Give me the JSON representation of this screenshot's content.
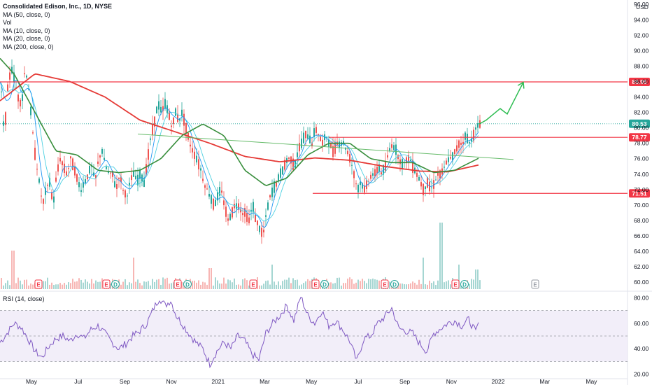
{
  "header": {
    "title": "Consolidated Edison, Inc., 1D, NYSE",
    "indicators": [
      "MA (50, close, 0)",
      "Vol",
      "MA (10, close, 0)",
      "MA (20, close, 0)",
      "MA (200, close, 0)"
    ],
    "rsi_label": "RSI (14, close)",
    "currency": "USD"
  },
  "colors": {
    "up": "#26a69a",
    "down": "#ef5350",
    "ma50": "#388e3c",
    "ma200": "#e53935",
    "ma10": "#2196f3",
    "ma20": "#4dd0e1",
    "rsi": "#7e57c2",
    "trend": "#66bb6a",
    "resistance": "#f23645",
    "last": "#26a69a"
  },
  "chart_data": {
    "type": "candlestick",
    "price_axis": {
      "ticks": [
        60,
        62,
        64,
        66,
        68,
        70,
        72,
        74,
        76,
        78,
        80,
        82,
        84,
        86,
        88,
        90,
        92,
        94,
        96
      ],
      "range": [
        59.2,
        96.2
      ]
    },
    "time_axis": [
      "May",
      "Jul",
      "Sep",
      "Nov",
      "2021",
      "Mar",
      "May",
      "Jul",
      "Sep",
      "Nov",
      "2022",
      "Mar",
      "May"
    ],
    "price_path": [
      [
        0,
        86
      ],
      [
        5,
        79
      ],
      [
        10,
        85
      ],
      [
        15,
        88
      ],
      [
        20,
        86
      ],
      [
        25,
        84
      ],
      [
        30,
        83
      ],
      [
        35,
        88
      ],
      [
        40,
        85
      ],
      [
        45,
        80
      ],
      [
        50,
        76
      ],
      [
        55,
        73
      ],
      [
        60,
        70
      ],
      [
        65,
        72
      ],
      [
        70,
        73
      ],
      [
        75,
        70
      ],
      [
        80,
        74
      ],
      [
        85,
        76
      ],
      [
        90,
        75
      ],
      [
        95,
        74
      ],
      [
        100,
        76
      ],
      [
        105,
        75
      ],
      [
        110,
        73
      ],
      [
        115,
        72
      ],
      [
        120,
        73
      ],
      [
        125,
        74
      ],
      [
        130,
        75
      ],
      [
        135,
        73
      ],
      [
        140,
        76
      ],
      [
        145,
        77
      ],
      [
        150,
        75
      ],
      [
        155,
        74
      ],
      [
        160,
        74
      ],
      [
        165,
        72
      ],
      [
        170,
        74
      ],
      [
        175,
        72
      ],
      [
        180,
        71
      ],
      [
        185,
        73
      ],
      [
        190,
        74
      ],
      [
        195,
        73
      ],
      [
        200,
        74
      ],
      [
        205,
        73
      ],
      [
        210,
        76
      ],
      [
        215,
        79
      ],
      [
        220,
        81
      ],
      [
        225,
        83
      ],
      [
        230,
        82
      ],
      [
        235,
        83
      ],
      [
        240,
        82
      ],
      [
        245,
        80
      ],
      [
        250,
        82
      ],
      [
        255,
        81
      ],
      [
        260,
        82
      ],
      [
        265,
        80
      ],
      [
        270,
        78
      ],
      [
        275,
        77
      ],
      [
        280,
        76
      ],
      [
        285,
        75
      ],
      [
        290,
        73
      ],
      [
        295,
        72
      ],
      [
        300,
        71
      ],
      [
        305,
        70
      ],
      [
        310,
        71
      ],
      [
        315,
        72
      ],
      [
        320,
        70
      ],
      [
        325,
        68
      ],
      [
        330,
        69
      ],
      [
        335,
        70
      ],
      [
        340,
        70
      ],
      [
        345,
        69
      ],
      [
        350,
        69
      ],
      [
        355,
        68
      ],
      [
        360,
        70
      ],
      [
        365,
        68
      ],
      [
        370,
        67
      ],
      [
        375,
        66
      ],
      [
        380,
        69
      ],
      [
        385,
        71
      ],
      [
        390,
        72
      ],
      [
        395,
        73
      ],
      [
        400,
        74
      ],
      [
        405,
        75
      ],
      [
        410,
        76
      ],
      [
        415,
        76
      ],
      [
        420,
        75
      ],
      [
        425,
        77
      ],
      [
        430,
        78
      ],
      [
        435,
        79
      ],
      [
        440,
        79
      ],
      [
        445,
        78
      ],
      [
        450,
        80
      ],
      [
        455,
        79
      ],
      [
        460,
        78
      ],
      [
        465,
        79
      ],
      [
        470,
        78
      ],
      [
        475,
        77
      ],
      [
        480,
        78
      ],
      [
        485,
        78
      ],
      [
        490,
        78
      ],
      [
        495,
        77
      ],
      [
        500,
        76
      ],
      [
        505,
        74
      ],
      [
        510,
        72
      ],
      [
        515,
        73
      ],
      [
        520,
        72
      ],
      [
        525,
        73
      ],
      [
        530,
        74
      ],
      [
        535,
        74
      ],
      [
        540,
        75
      ],
      [
        545,
        74
      ],
      [
        550,
        75
      ],
      [
        555,
        77
      ],
      [
        560,
        78
      ],
      [
        565,
        77
      ],
      [
        570,
        76
      ],
      [
        575,
        75
      ],
      [
        580,
        76
      ],
      [
        585,
        76
      ],
      [
        590,
        75
      ],
      [
        595,
        74
      ],
      [
        600,
        73
      ],
      [
        605,
        72
      ],
      [
        610,
        73
      ],
      [
        615,
        72
      ],
      [
        620,
        73
      ],
      [
        625,
        74
      ],
      [
        630,
        74
      ],
      [
        635,
        75
      ],
      [
        640,
        76
      ],
      [
        645,
        76
      ],
      [
        650,
        77
      ],
      [
        655,
        78
      ],
      [
        660,
        78
      ],
      [
        665,
        79
      ],
      [
        670,
        78
      ],
      [
        675,
        79
      ],
      [
        680,
        80
      ],
      [
        685,
        80.5
      ]
    ],
    "volume_spikes": [
      [
        18,
        0.55
      ],
      [
        190,
        0.45
      ],
      [
        300,
        0.3
      ],
      [
        388,
        0.35
      ],
      [
        630,
        0.95
      ],
      [
        604,
        0.45
      ],
      [
        655,
        0.35
      ],
      [
        680,
        0.28
      ]
    ],
    "ma200": [
      [
        0,
        83.5
      ],
      [
        50,
        87
      ],
      [
        100,
        86
      ],
      [
        150,
        84
      ],
      [
        200,
        81
      ],
      [
        250,
        79.5
      ],
      [
        300,
        78
      ],
      [
        350,
        76.3
      ],
      [
        400,
        75.6
      ],
      [
        450,
        76.1
      ],
      [
        500,
        75.8
      ],
      [
        550,
        75
      ],
      [
        600,
        74.4
      ],
      [
        640,
        74.3
      ],
      [
        685,
        75.2
      ]
    ],
    "ma50": [
      [
        0,
        89
      ],
      [
        20,
        87
      ],
      [
        50,
        82
      ],
      [
        80,
        77
      ],
      [
        110,
        76.5
      ],
      [
        140,
        74.5
      ],
      [
        170,
        74.2
      ],
      [
        200,
        74.5
      ],
      [
        230,
        76
      ],
      [
        260,
        79
      ],
      [
        290,
        80.5
      ],
      [
        320,
        79
      ],
      [
        350,
        74.5
      ],
      [
        380,
        72.5
      ],
      [
        410,
        73.5
      ],
      [
        440,
        76.5
      ],
      [
        470,
        78
      ],
      [
        500,
        78
      ],
      [
        530,
        76
      ],
      [
        560,
        75.5
      ],
      [
        590,
        75.5
      ],
      [
        620,
        74.2
      ],
      [
        650,
        74.5
      ],
      [
        685,
        76.1
      ]
    ],
    "trendline": {
      "from": [
        197,
        79.2
      ],
      "to": [
        734,
        75.9
      ]
    },
    "horizontal_levels": [
      {
        "price": 85.95,
        "label": "85.95",
        "x_from": 0
      },
      {
        "price": 78.77,
        "label": "78.77",
        "x_from": 470
      },
      {
        "price": 71.51,
        "label": "71.51",
        "x_from": 447
      }
    ],
    "last_price": {
      "value": 80.53,
      "label": "80.53"
    },
    "projection": [
      [
        685,
        80.5
      ],
      [
        695,
        81
      ],
      [
        715,
        82.5
      ],
      [
        725,
        81.8
      ],
      [
        748,
        85.9
      ]
    ],
    "earnings_markers": [
      {
        "x": 55,
        "label": "E",
        "state": "past"
      },
      {
        "x": 152,
        "label": "E",
        "state": "past"
      },
      {
        "x": 165,
        "label": "D",
        "state": "past"
      },
      {
        "x": 254,
        "label": "E",
        "state": "past"
      },
      {
        "x": 268,
        "label": "D",
        "state": "past"
      },
      {
        "x": 362,
        "label": "E",
        "state": "past"
      },
      {
        "x": 451,
        "label": "E",
        "state": "past"
      },
      {
        "x": 464,
        "label": "D",
        "state": "past"
      },
      {
        "x": 550,
        "label": "E",
        "state": "past"
      },
      {
        "x": 564,
        "label": "D",
        "state": "past"
      },
      {
        "x": 651,
        "label": "E",
        "state": "past"
      },
      {
        "x": 664,
        "label": "D",
        "state": "past"
      },
      {
        "x": 765,
        "label": "E",
        "state": "future"
      }
    ],
    "rsi": {
      "ticks": [
        20,
        40,
        60,
        80
      ],
      "range": [
        17,
        83
      ],
      "upper": 70,
      "lower": 30,
      "values": [
        [
          0,
          45
        ],
        [
          10,
          52
        ],
        [
          20,
          60
        ],
        [
          30,
          57
        ],
        [
          40,
          48
        ],
        [
          50,
          38
        ],
        [
          60,
          33
        ],
        [
          70,
          42
        ],
        [
          80,
          48
        ],
        [
          90,
          50
        ],
        [
          100,
          46
        ],
        [
          110,
          52
        ],
        [
          120,
          48
        ],
        [
          130,
          55
        ],
        [
          140,
          58
        ],
        [
          150,
          52
        ],
        [
          160,
          45
        ],
        [
          170,
          40
        ],
        [
          180,
          44
        ],
        [
          190,
          50
        ],
        [
          200,
          54
        ],
        [
          210,
          60
        ],
        [
          220,
          72
        ],
        [
          228,
          80
        ],
        [
          236,
          74
        ],
        [
          244,
          78
        ],
        [
          252,
          66
        ],
        [
          260,
          60
        ],
        [
          270,
          52
        ],
        [
          280,
          45
        ],
        [
          290,
          40
        ],
        [
          300,
          28
        ],
        [
          310,
          38
        ],
        [
          320,
          45
        ],
        [
          330,
          40
        ],
        [
          340,
          50
        ],
        [
          350,
          46
        ],
        [
          360,
          36
        ],
        [
          370,
          31
        ],
        [
          380,
          52
        ],
        [
          390,
          60
        ],
        [
          400,
          66
        ],
        [
          410,
          74
        ],
        [
          420,
          62
        ],
        [
          430,
          81
        ],
        [
          440,
          66
        ],
        [
          450,
          60
        ],
        [
          460,
          70
        ],
        [
          470,
          58
        ],
        [
          480,
          62
        ],
        [
          490,
          55
        ],
        [
          500,
          46
        ],
        [
          510,
          30
        ],
        [
          520,
          48
        ],
        [
          530,
          50
        ],
        [
          540,
          60
        ],
        [
          550,
          65
        ],
        [
          560,
          72
        ],
        [
          570,
          56
        ],
        [
          580,
          54
        ],
        [
          590,
          52
        ],
        [
          600,
          44
        ],
        [
          610,
          38
        ],
        [
          620,
          52
        ],
        [
          630,
          56
        ],
        [
          640,
          60
        ],
        [
          650,
          62
        ],
        [
          660,
          58
        ],
        [
          670,
          63
        ],
        [
          680,
          53
        ],
        [
          685,
          62
        ]
      ]
    }
  }
}
